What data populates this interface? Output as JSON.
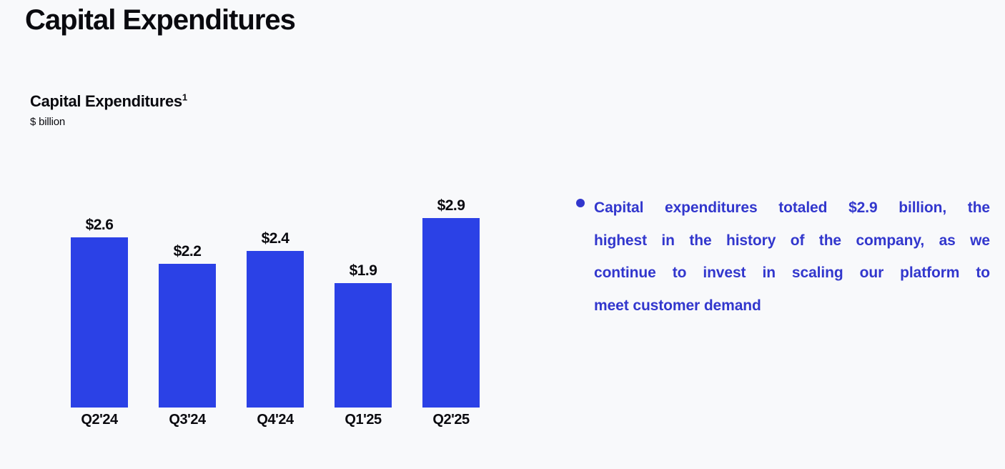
{
  "page": {
    "title": "Capital Expenditures",
    "background_color": "#f8f9fb",
    "text_color": "#0a0a0f"
  },
  "chart": {
    "title": "Capital Expenditures",
    "footnote_marker": "1",
    "unit_label": "$ billion",
    "bar_color": "#2b41e6",
    "label_color": "#0a0a0f"
  },
  "chart_data": {
    "type": "bar",
    "title": "Capital Expenditures",
    "subtitle_unit": "$ billion",
    "categories": [
      "Q2'24",
      "Q3'24",
      "Q4'24",
      "Q1'25",
      "Q2'25"
    ],
    "values": [
      2.6,
      2.2,
      2.4,
      1.9,
      2.9
    ],
    "data_labels": [
      "$2.6",
      "$2.2",
      "$2.4",
      "$1.9",
      "$2.9"
    ],
    "xlabel": "",
    "ylabel": "$ billion",
    "ylim": [
      0,
      3.2
    ],
    "grid": false,
    "legend": false,
    "bar_color": "#2b41e6"
  },
  "commentary": {
    "accent_color": "#3237cd",
    "lines": [
      "Capital expenditures totaled $2.9 billion, the",
      "highest in the history of the company, as we",
      "continue to invest in scaling our platform to",
      "meet customer demand"
    ]
  }
}
